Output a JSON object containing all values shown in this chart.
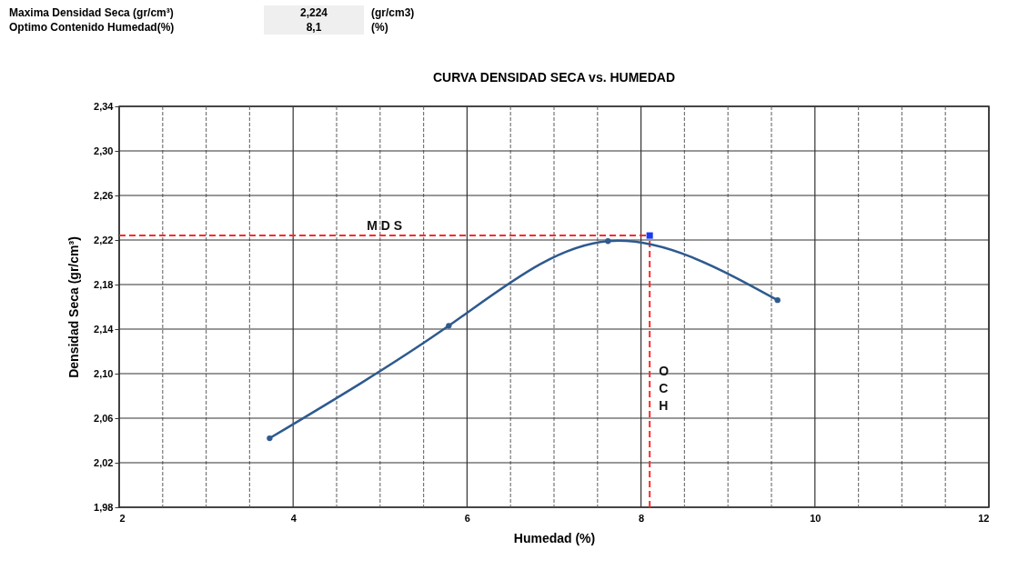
{
  "chart_data": {
    "type": "line",
    "title": "CURVA DENSIDAD SECA vs. HUMEDAD",
    "xlabel": "Humedad (%)",
    "ylabel": "Densidad  Seca (gr/cm³)",
    "annotations": [
      "Maxima Densidad Seca (gr/cm³)",
      "2,224",
      "(gr/cm3)",
      "Optimo Contenido Humedad(%)",
      "8,1",
      "(%)"
    ],
    "xlim": [
      2,
      12
    ],
    "ylim": [
      1.98,
      2.34
    ],
    "xticks": [
      2,
      {
        "value": 2.5,
        "label": null
      },
      {
        "value": 3,
        "label": null
      },
      {
        "value": 3.5,
        "label": null
      },
      4,
      {
        "value": 4.5,
        "label": null
      },
      {
        "value": 5,
        "label": null
      },
      {
        "value": 5.5,
        "label": null
      },
      6,
      {
        "value": 6.5,
        "label": null
      },
      {
        "value": 7,
        "label": null
      },
      {
        "value": 7.5,
        "label": null
      },
      8,
      {
        "value": 8.5,
        "label": null
      },
      {
        "value": 9,
        "label": null
      },
      {
        "value": 9.5,
        "label": null
      },
      10,
      {
        "value": 10.5,
        "label": null
      },
      {
        "value": 11,
        "label": null
      },
      {
        "value": 11.5,
        "label": null
      },
      12
    ],
    "yticks": [
      {
        "value": 1.98,
        "label": "1,98"
      },
      {
        "value": 2.02,
        "label": "2,02"
      },
      {
        "value": 2.06,
        "label": "2,06"
      },
      {
        "value": 2.1,
        "label": "2,10"
      },
      {
        "value": 2.14,
        "label": "2,14"
      },
      {
        "value": 2.18,
        "label": "2,18"
      },
      {
        "value": 2.22,
        "label": "2,22"
      },
      {
        "value": 2.26,
        "label": "2,26"
      },
      {
        "value": 2.3,
        "label": "2,30"
      },
      {
        "value": 2.34,
        "label": "2,34"
      }
    ],
    "grid": true,
    "marker": "circle",
    "series": [
      {
        "color": "#2e5a8e",
        "x": [
          3.73,
          5.79,
          7.62,
          9.57
        ],
        "values": [
          2.042,
          2.143,
          2.219,
          2.166
        ]
      },
      {
        "type": "scatter",
        "color": "#1a3cf0",
        "marker": "square",
        "x": [
          8.1
        ],
        "values": [
          2.224
        ]
      }
    ],
    "ref_lines": [
      {
        "axis": "y",
        "value": 2.224,
        "label": "M D S",
        "color": "#ff2a2a",
        "line_style": "dashed"
      },
      {
        "axis": "x",
        "value": 8.1,
        "label": "OCH",
        "color": "#ff2a2a",
        "line_style": "dashed"
      }
    ]
  }
}
